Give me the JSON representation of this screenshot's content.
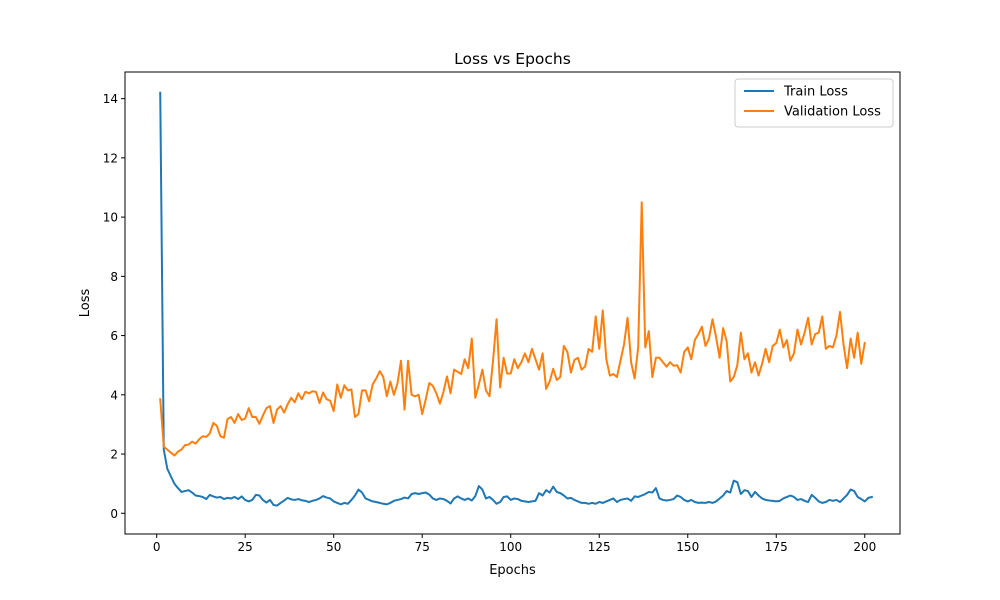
{
  "chart_data": {
    "type": "line",
    "title": "Loss vs Epochs",
    "xlabel": "Epochs",
    "ylabel": "Loss",
    "xlim": [
      -8.95,
      209.95
    ],
    "ylim": [
      -0.7,
      14.9
    ],
    "xticks": [
      0,
      25,
      50,
      75,
      100,
      125,
      150,
      175,
      200
    ],
    "yticks": [
      0,
      2,
      4,
      6,
      8,
      10,
      12,
      14
    ],
    "legend_position": "top-right",
    "grid": false,
    "series": [
      {
        "name": "Train Loss",
        "color": "#1f77b4",
        "values": [
          14.2,
          2.15,
          1.5,
          1.25,
          1.0,
          0.85,
          0.72,
          0.75,
          0.78,
          0.7,
          0.6,
          0.58,
          0.55,
          0.48,
          0.62,
          0.57,
          0.53,
          0.55,
          0.48,
          0.52,
          0.5,
          0.55,
          0.48,
          0.57,
          0.45,
          0.4,
          0.45,
          0.62,
          0.6,
          0.45,
          0.36,
          0.45,
          0.28,
          0.26,
          0.35,
          0.43,
          0.52,
          0.47,
          0.45,
          0.48,
          0.44,
          0.42,
          0.38,
          0.42,
          0.45,
          0.5,
          0.58,
          0.53,
          0.5,
          0.4,
          0.35,
          0.3,
          0.35,
          0.32,
          0.45,
          0.6,
          0.8,
          0.7,
          0.5,
          0.45,
          0.4,
          0.38,
          0.35,
          0.32,
          0.3,
          0.35,
          0.42,
          0.45,
          0.48,
          0.53,
          0.5,
          0.65,
          0.68,
          0.65,
          0.68,
          0.7,
          0.63,
          0.5,
          0.45,
          0.5,
          0.48,
          0.42,
          0.33,
          0.5,
          0.57,
          0.5,
          0.45,
          0.5,
          0.43,
          0.58,
          0.92,
          0.8,
          0.5,
          0.55,
          0.45,
          0.32,
          0.38,
          0.55,
          0.57,
          0.45,
          0.5,
          0.48,
          0.42,
          0.4,
          0.38,
          0.4,
          0.42,
          0.68,
          0.6,
          0.78,
          0.7,
          0.9,
          0.72,
          0.68,
          0.6,
          0.5,
          0.52,
          0.45,
          0.4,
          0.35,
          0.35,
          0.32,
          0.35,
          0.32,
          0.38,
          0.35,
          0.4,
          0.45,
          0.5,
          0.38,
          0.45,
          0.48,
          0.5,
          0.42,
          0.57,
          0.55,
          0.6,
          0.65,
          0.72,
          0.7,
          0.85,
          0.5,
          0.45,
          0.43,
          0.45,
          0.48,
          0.6,
          0.55,
          0.45,
          0.4,
          0.45,
          0.38,
          0.35,
          0.36,
          0.35,
          0.38,
          0.35,
          0.4,
          0.5,
          0.6,
          0.75,
          0.7,
          1.1,
          1.05,
          0.65,
          0.78,
          0.75,
          0.55,
          0.72,
          0.6,
          0.5,
          0.45,
          0.43,
          0.42,
          0.4,
          0.42,
          0.5,
          0.55,
          0.6,
          0.55,
          0.45,
          0.48,
          0.42,
          0.38,
          0.62,
          0.52,
          0.4,
          0.35,
          0.38,
          0.45,
          0.42,
          0.45,
          0.38,
          0.5,
          0.62,
          0.8,
          0.75,
          0.55,
          0.48,
          0.4,
          0.52,
          0.55
        ]
      },
      {
        "name": "Validation Loss",
        "color": "#ff7f0e",
        "values": [
          3.85,
          2.25,
          2.15,
          2.05,
          1.95,
          2.08,
          2.15,
          2.3,
          2.32,
          2.42,
          2.35,
          2.5,
          2.6,
          2.58,
          2.7,
          3.05,
          2.95,
          2.6,
          2.55,
          3.18,
          3.25,
          3.05,
          3.35,
          3.15,
          3.2,
          3.55,
          3.25,
          3.25,
          3.02,
          3.3,
          3.55,
          3.62,
          3.05,
          3.5,
          3.62,
          3.4,
          3.68,
          3.9,
          3.75,
          4.05,
          3.85,
          4.1,
          4.05,
          4.12,
          4.1,
          3.72,
          4.08,
          3.85,
          3.8,
          3.45,
          4.35,
          3.9,
          4.32,
          4.15,
          4.18,
          3.25,
          3.35,
          4.15,
          4.15,
          3.78,
          4.35,
          4.55,
          4.8,
          4.6,
          3.95,
          4.45,
          4.0,
          4.38,
          5.15,
          3.5,
          5.15,
          4.0,
          3.95,
          4.0,
          3.35,
          3.85,
          4.4,
          4.3,
          4.05,
          3.7,
          4.1,
          4.62,
          4.05,
          4.85,
          4.78,
          4.7,
          5.2,
          4.9,
          5.9,
          3.9,
          4.35,
          4.85,
          4.15,
          3.95,
          5.15,
          6.55,
          4.25,
          5.25,
          4.72,
          4.72,
          5.2,
          4.9,
          5.1,
          5.4,
          5.1,
          5.55,
          5.2,
          4.85,
          5.4,
          4.2,
          4.45,
          4.88,
          4.5,
          4.6,
          5.65,
          5.45,
          4.75,
          5.18,
          5.25,
          4.85,
          4.95,
          5.55,
          5.45,
          6.65,
          5.55,
          6.85,
          5.2,
          4.65,
          4.7,
          4.6,
          5.15,
          5.7,
          6.6,
          5.1,
          4.55,
          5.6,
          10.5,
          5.6,
          6.15,
          4.6,
          5.25,
          5.25,
          5.1,
          4.95,
          5.1,
          4.98,
          5.0,
          4.75,
          5.45,
          5.6,
          5.2,
          5.85,
          6.05,
          6.3,
          5.65,
          5.9,
          6.55,
          5.95,
          5.25,
          6.25,
          5.8,
          4.45,
          4.6,
          5.0,
          6.1,
          5.2,
          5.4,
          4.75,
          5.1,
          4.65,
          5.05,
          5.55,
          5.1,
          5.65,
          5.75,
          6.2,
          5.6,
          5.85,
          5.15,
          5.4,
          6.2,
          5.7,
          6.1,
          6.6,
          5.7,
          6.05,
          6.1,
          6.65,
          5.55,
          5.65,
          5.6,
          6.0,
          6.8,
          5.7,
          4.9,
          5.9,
          5.25,
          6.1,
          5.05,
          5.75
        ]
      }
    ]
  }
}
